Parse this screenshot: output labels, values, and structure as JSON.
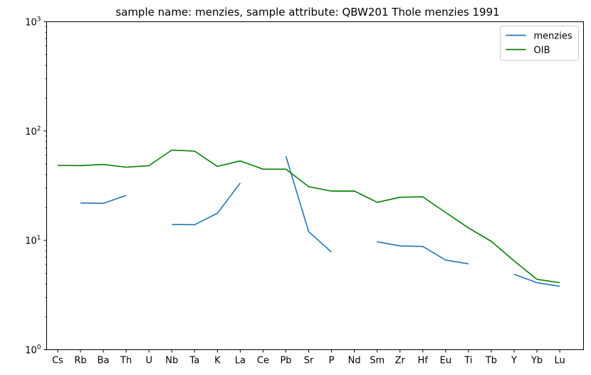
{
  "chart_data": {
    "type": "line",
    "title": "sample name: menzies, sample attribute: QBW201 Thole menzies 1991",
    "xlabel": "",
    "ylabel": "",
    "yscale": "log",
    "ylim": [
      1,
      1000
    ],
    "y_ticks": [
      {
        "value": 1,
        "base": "10",
        "exp": "0"
      },
      {
        "value": 10,
        "base": "10",
        "exp": "1"
      },
      {
        "value": 100,
        "base": "10",
        "exp": "2"
      },
      {
        "value": 1000,
        "base": "10",
        "exp": "3"
      }
    ],
    "categories": [
      "Cs",
      "Rb",
      "Ba",
      "Th",
      "U",
      "Nb",
      "Ta",
      "K",
      "La",
      "Ce",
      "Pb",
      "Sr",
      "P",
      "Nd",
      "Sm",
      "Zr",
      "Hf",
      "Eu",
      "Ti",
      "Tb",
      "Y",
      "Yb",
      "Lu"
    ],
    "grid": false,
    "legend_position": "upper right",
    "series": [
      {
        "name": "menzies",
        "color": "#1f77b4",
        "values": [
          null,
          22,
          21.8,
          25.8,
          null,
          14,
          13.9,
          17.7,
          33.5,
          null,
          59,
          12,
          7.8,
          null,
          9.7,
          8.9,
          8.8,
          6.6,
          6.1,
          null,
          4.9,
          4.1,
          3.8
        ]
      },
      {
        "name": "OIB",
        "color": "#008000",
        "values": [
          48.5,
          48.3,
          49.5,
          46.7,
          48.2,
          67,
          65.5,
          47.5,
          53.3,
          44.8,
          44.8,
          31,
          28.2,
          28.3,
          22.3,
          24.8,
          25,
          18,
          13,
          9.8,
          6.5,
          4.4,
          4.1
        ]
      }
    ]
  }
}
